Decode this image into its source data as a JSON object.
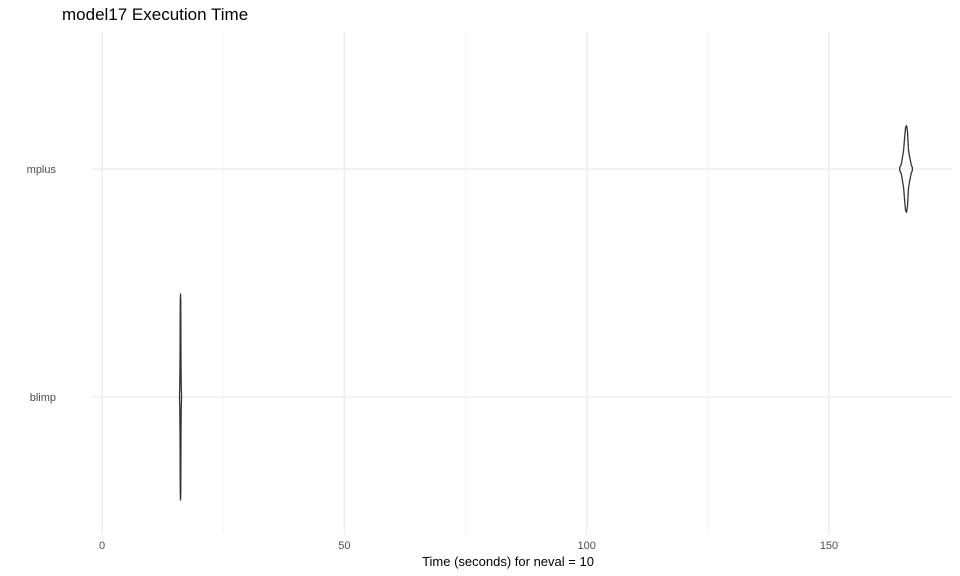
{
  "chart_data": {
    "type": "violin",
    "title": "model17 Execution Time",
    "xlabel": "Time (seconds) for neval = 10",
    "ylabel": "",
    "xlim": [
      0,
      175
    ],
    "x_ticks": [
      0,
      50,
      100,
      150
    ],
    "x_minor_ticks": [
      25,
      75,
      125
    ],
    "categories": [
      "blimp",
      "mplus"
    ],
    "grid": true,
    "distributions": [
      {
        "category": "blimp",
        "x_range": [
          16.0,
          16.4
        ],
        "profile": [
          {
            "x": 16.0,
            "density": 0.03
          },
          {
            "x": 16.05,
            "density": 0.09
          },
          {
            "x": 16.1,
            "density": 0.35
          },
          {
            "x": 16.15,
            "density": 0.93
          },
          {
            "x": 16.2,
            "density": 1.0
          },
          {
            "x": 16.25,
            "density": 0.93
          },
          {
            "x": 16.3,
            "density": 0.35
          },
          {
            "x": 16.35,
            "density": 0.09
          },
          {
            "x": 16.4,
            "density": 0.03
          }
        ]
      },
      {
        "category": "mplus",
        "x_range": [
          164.6,
          167.2
        ],
        "profile": [
          {
            "x": 164.6,
            "density": 0.04
          },
          {
            "x": 164.9,
            "density": 0.1
          },
          {
            "x": 165.2,
            "density": 0.3
          },
          {
            "x": 165.4,
            "density": 0.44
          },
          {
            "x": 165.6,
            "density": 0.72
          },
          {
            "x": 165.8,
            "density": 0.96
          },
          {
            "x": 166.0,
            "density": 1.0
          },
          {
            "x": 166.2,
            "density": 0.86
          },
          {
            "x": 166.4,
            "density": 0.44
          },
          {
            "x": 166.6,
            "density": 0.3
          },
          {
            "x": 166.8,
            "density": 0.19
          },
          {
            "x": 167.0,
            "density": 0.08
          },
          {
            "x": 167.2,
            "density": 0.04
          }
        ]
      }
    ]
  }
}
